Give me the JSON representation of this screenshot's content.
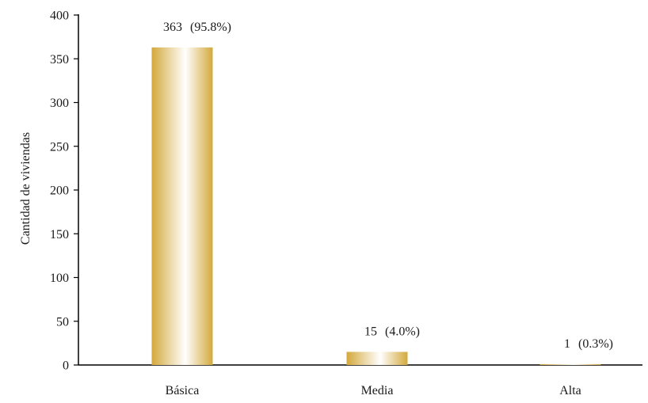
{
  "chart_data": {
    "type": "bar",
    "categories": [
      "Básica",
      "Media",
      "Alta"
    ],
    "values": [
      363,
      15,
      1
    ],
    "value_labels": [
      "363",
      "15",
      "1"
    ],
    "percent_labels": [
      "(95.8%)",
      "(4.0%)",
      "(0.3%)"
    ],
    "title": "",
    "xlabel": "",
    "ylabel": "Cantidad de viviendas",
    "ylim": [
      0,
      400
    ],
    "yticks": [
      0,
      50,
      100,
      150,
      200,
      250,
      300,
      350,
      400
    ],
    "grid": false,
    "legend": "none",
    "bar_color": "#D4A93C",
    "bar_highlight_color": "#FFFFFF"
  }
}
